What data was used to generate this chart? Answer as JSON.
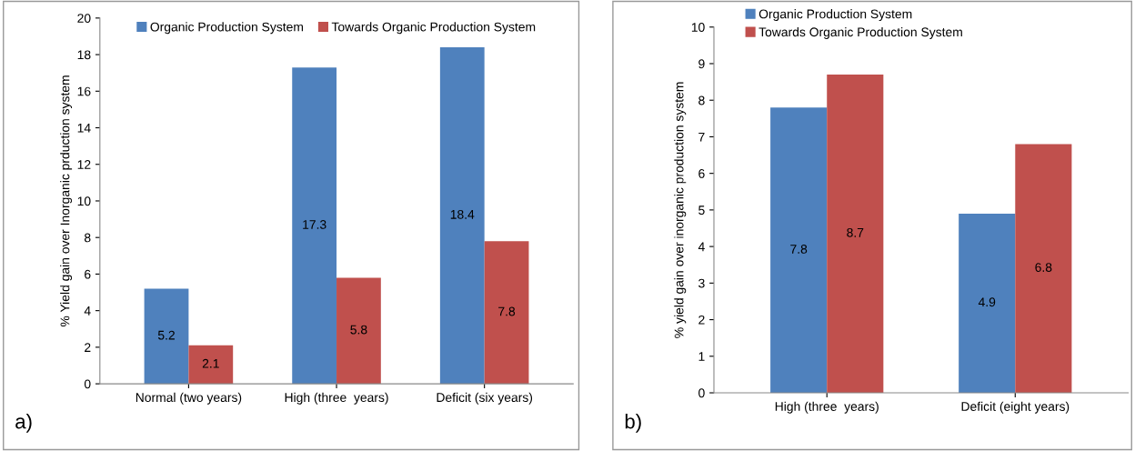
{
  "chart_data": [
    {
      "type": "bar",
      "ylabel": "% Yield gain over Inorganic prduction system",
      "categories": [
        "Normal (two years)",
        "High (three  years)",
        "Deficit (six years)"
      ],
      "series": [
        {
          "name": "Organic Production System",
          "color": "#4f81bd",
          "values": [
            5.2,
            17.3,
            18.4
          ]
        },
        {
          "name": "Towards Organic Production System",
          "color": "#c0504d",
          "values": [
            2.1,
            5.8,
            7.8
          ]
        }
      ],
      "ylim": [
        0,
        20
      ],
      "yticks": [
        0,
        2,
        4,
        6,
        8,
        10,
        12,
        14,
        16,
        18,
        20
      ],
      "data_labels": true,
      "legend": "top",
      "grid": false,
      "annotations": [
        "a)"
      ]
    },
    {
      "type": "bar",
      "ylabel": "% yield gain over inorganic production system",
      "categories": [
        "High (three  years)",
        "Deficit (eight years)"
      ],
      "series": [
        {
          "name": "Organic Production System",
          "color": "#4f81bd",
          "values": [
            7.8,
            4.9
          ]
        },
        {
          "name": "Towards Organic Production System",
          "color": "#c0504d",
          "values": [
            8.7,
            6.8
          ]
        }
      ],
      "ylim": [
        0,
        10
      ],
      "yticks": [
        0,
        1,
        2,
        3,
        4,
        5,
        6,
        7,
        8,
        9,
        10
      ],
      "data_labels": true,
      "legend": "top left",
      "grid": false,
      "annotations": [
        "b)"
      ]
    }
  ]
}
